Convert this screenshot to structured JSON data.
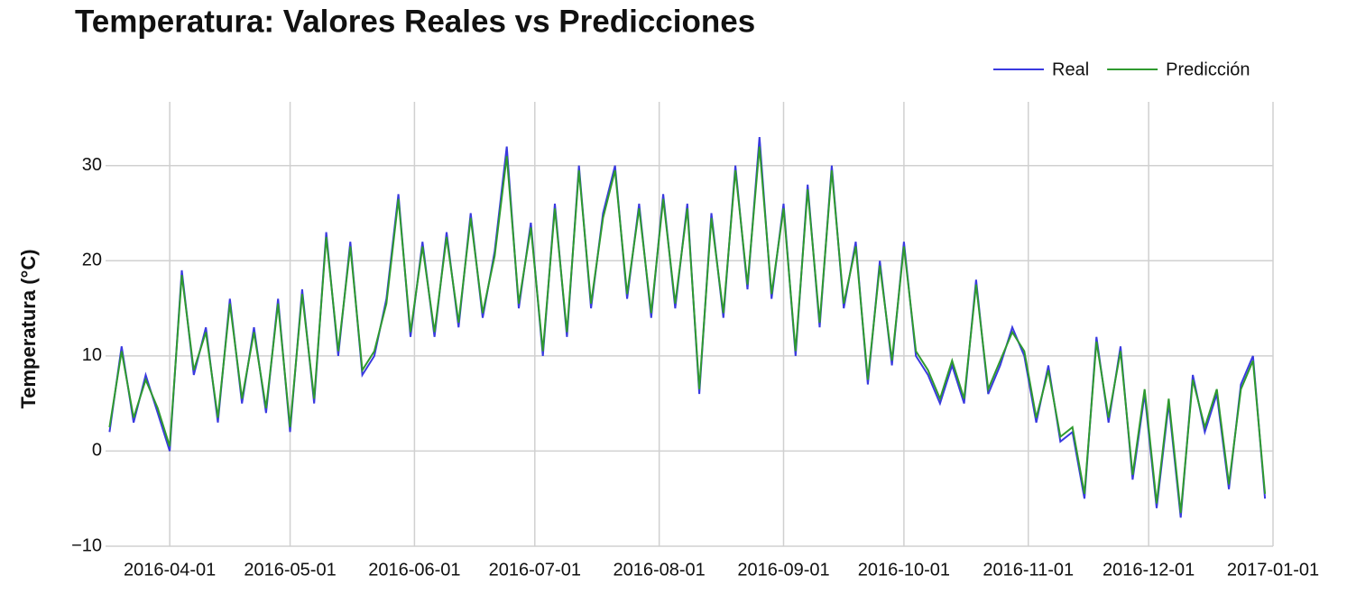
{
  "chart_data": {
    "type": "line",
    "title": "Temperatura: Valores Reales vs Predicciones",
    "y_label": "Temperatura (°C)",
    "x": [
      "2016-03-17",
      "2016-03-20",
      "2016-03-23",
      "2016-03-26",
      "2016-03-29",
      "2016-04-01",
      "2016-04-04",
      "2016-04-07",
      "2016-04-10",
      "2016-04-13",
      "2016-04-16",
      "2016-04-19",
      "2016-04-22",
      "2016-04-25",
      "2016-04-28",
      "2016-05-01",
      "2016-05-04",
      "2016-05-07",
      "2016-05-10",
      "2016-05-13",
      "2016-05-16",
      "2016-05-19",
      "2016-05-22",
      "2016-05-25",
      "2016-05-28",
      "2016-05-31",
      "2016-06-03",
      "2016-06-06",
      "2016-06-09",
      "2016-06-12",
      "2016-06-15",
      "2016-06-18",
      "2016-06-21",
      "2016-06-24",
      "2016-06-27",
      "2016-06-30",
      "2016-07-03",
      "2016-07-06",
      "2016-07-09",
      "2016-07-12",
      "2016-07-15",
      "2016-07-18",
      "2016-07-21",
      "2016-07-24",
      "2016-07-27",
      "2016-07-30",
      "2016-08-02",
      "2016-08-05",
      "2016-08-08",
      "2016-08-11",
      "2016-08-14",
      "2016-08-17",
      "2016-08-20",
      "2016-08-23",
      "2016-08-26",
      "2016-08-29",
      "2016-09-01",
      "2016-09-04",
      "2016-09-07",
      "2016-09-10",
      "2016-09-13",
      "2016-09-16",
      "2016-09-19",
      "2016-09-22",
      "2016-09-25",
      "2016-09-28",
      "2016-10-01",
      "2016-10-04",
      "2016-10-07",
      "2016-10-10",
      "2016-10-13",
      "2016-10-16",
      "2016-10-19",
      "2016-10-22",
      "2016-10-25",
      "2016-10-28",
      "2016-10-31",
      "2016-11-03",
      "2016-11-06",
      "2016-11-09",
      "2016-11-12",
      "2016-11-15",
      "2016-11-18",
      "2016-11-21",
      "2016-11-24",
      "2016-11-27",
      "2016-11-30",
      "2016-12-03",
      "2016-12-06",
      "2016-12-09",
      "2016-12-12",
      "2016-12-15",
      "2016-12-18",
      "2016-12-21",
      "2016-12-24",
      "2016-12-27",
      "2016-12-30"
    ],
    "series": [
      {
        "name": "Real",
        "color": "#3a3ae0",
        "values": [
          2,
          11,
          3,
          8,
          4,
          0,
          19,
          8,
          13,
          3,
          16,
          5,
          13,
          4,
          16,
          2,
          17,
          5,
          23,
          10,
          22,
          8,
          10,
          16,
          27,
          12,
          22,
          12,
          23,
          13,
          25,
          14,
          21,
          32,
          15,
          24,
          10,
          26,
          12,
          30,
          15,
          25,
          30,
          16,
          26,
          14,
          27,
          15,
          26,
          6,
          25,
          14,
          30,
          17,
          33,
          16,
          26,
          10,
          28,
          13,
          30,
          15,
          22,
          7,
          20,
          9,
          22,
          10,
          8,
          5,
          9,
          5,
          18,
          6,
          9,
          13,
          10,
          3,
          9,
          1,
          2,
          -5,
          12,
          3,
          11,
          -3,
          6,
          -6,
          5,
          -7,
          8,
          2,
          6,
          -4,
          7,
          10,
          -5
        ]
      },
      {
        "name": "Predicción",
        "color": "#2f9a2f",
        "values": [
          2.5,
          10.5,
          3.5,
          7.5,
          4.5,
          0.5,
          18.5,
          8.5,
          12.5,
          3.5,
          15.5,
          5.5,
          12.5,
          4.5,
          15.5,
          2.5,
          16.5,
          5.5,
          22.5,
          10.5,
          21.5,
          8.5,
          10.5,
          15.5,
          26.5,
          12.5,
          21.5,
          12.5,
          22.5,
          13.5,
          24.5,
          14.5,
          20.5,
          31,
          15.5,
          23.5,
          10.5,
          25.5,
          12.5,
          29.5,
          15.5,
          24.5,
          29.5,
          16.5,
          25.5,
          14.5,
          26.5,
          15.5,
          25.5,
          6.5,
          24.5,
          14.5,
          29.5,
          17.5,
          32,
          16.5,
          25.5,
          10.5,
          27.5,
          13.5,
          29.5,
          15.5,
          21.5,
          7.5,
          19.5,
          9.5,
          21.5,
          10.5,
          8.5,
          5.5,
          9.5,
          5.5,
          17.5,
          6.5,
          9.5,
          12.5,
          10.5,
          3.5,
          8.5,
          1.5,
          2.5,
          -4.5,
          11.5,
          3.5,
          10.5,
          -2.5,
          6.5,
          -5.5,
          5.5,
          -6.5,
          7.5,
          2.5,
          6.5,
          -3.5,
          6.5,
          9.5,
          -4.5
        ]
      }
    ],
    "xlim": [
      "2016-03-16",
      "2017-01-01"
    ],
    "xticks": [
      "2016-04-01",
      "2016-05-01",
      "2016-06-01",
      "2016-07-01",
      "2016-08-01",
      "2016-09-01",
      "2016-10-01",
      "2016-11-01",
      "2016-12-01",
      "2017-01-01"
    ],
    "ylim": [
      -10,
      36.7
    ],
    "yticks": [
      {
        "value": -10,
        "label": "−10"
      },
      0,
      10,
      20,
      30
    ],
    "grid": true,
    "legend": "top-right"
  }
}
